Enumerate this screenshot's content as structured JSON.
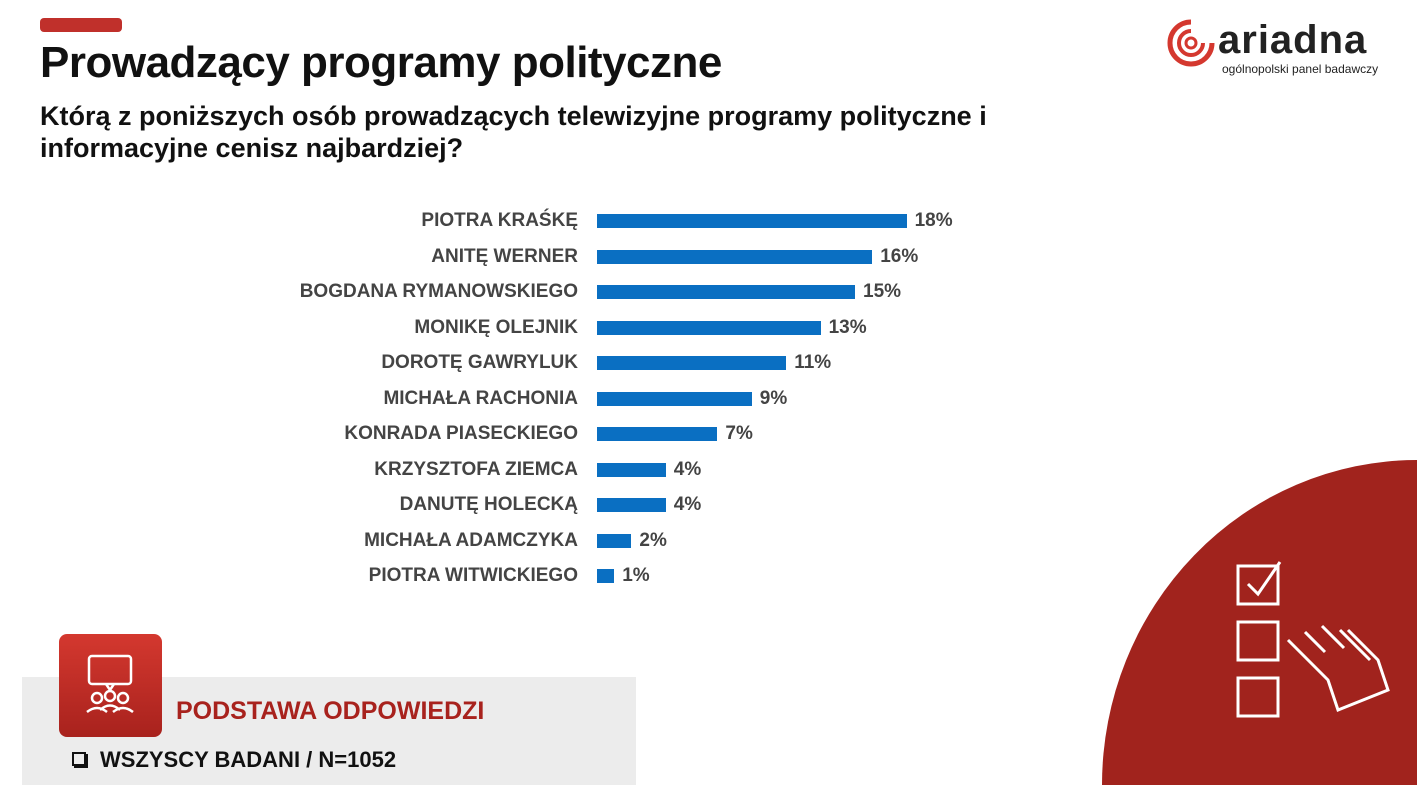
{
  "header": {
    "title": "Prowadzący programy polityczne",
    "question": "Którą z poniższych osób prowadzących telewizyjne programy polityczne i informacyjne cenisz najbardziej?"
  },
  "logo": {
    "name": "ariadna",
    "tagline": "ogólnopolski panel badawczy"
  },
  "base": {
    "title": "PODSTAWA ODPOWIEDZI",
    "item": "WSZYSCY BADANI / N=1052"
  },
  "colors": {
    "bar": "#0a6fc2",
    "brand": "#a8221d"
  },
  "chart_data": {
    "type": "bar",
    "orientation": "horizontal",
    "categories": [
      "PIOTRA KRAŚKĘ",
      "ANITĘ WERNER",
      "BOGDANA RYMANOWSKIEGO",
      "MONIKĘ OLEJNIK",
      "DOROTĘ GAWRYLUK",
      "MICHAŁA RACHONIA",
      "KONRADA PIASECKIEGO",
      "KRZYSZTOFA ZIEMCA",
      "DANUTĘ HOLECKĄ",
      "MICHAŁA ADAMCZYKA",
      "PIOTRA WITWICKIEGO"
    ],
    "values": [
      18,
      16,
      15,
      13,
      11,
      9,
      7,
      4,
      4,
      2,
      1
    ],
    "labels": [
      "18%",
      "16%",
      "15%",
      "13%",
      "11%",
      "9%",
      "7%",
      "4%",
      "4%",
      "2%",
      "1%"
    ],
    "unit": "%"
  }
}
